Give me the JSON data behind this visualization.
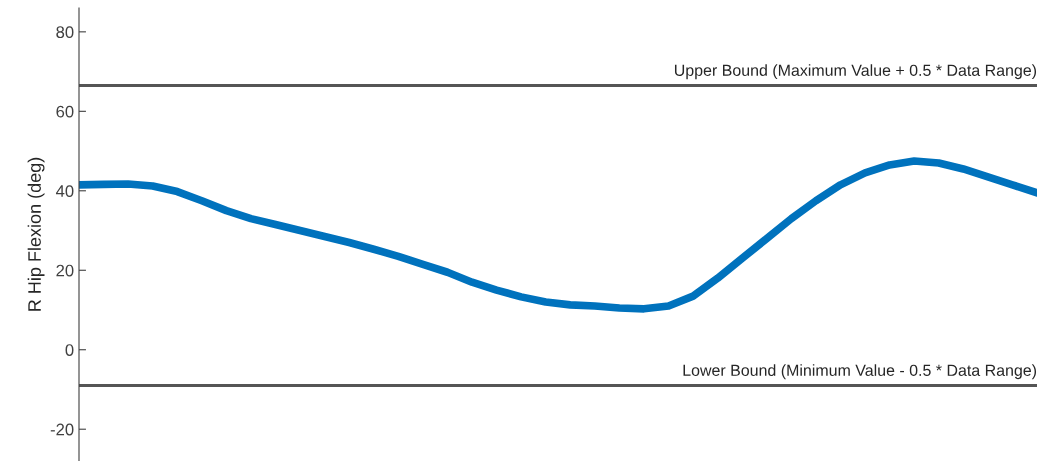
{
  "chart_data": {
    "type": "line",
    "ylabel": "R Hip Flexion (deg)",
    "categories": [
      null,
      null,
      null,
      null,
      null,
      null,
      null,
      null,
      null,
      null,
      null,
      null,
      null,
      null,
      null,
      null,
      null,
      null,
      null,
      null,
      null,
      null,
      null,
      null,
      null,
      null,
      null,
      null,
      null,
      null,
      null,
      null,
      null,
      null,
      null,
      null,
      null,
      null,
      null,
      null
    ],
    "series": [
      {
        "color": "#0072bd",
        "values": [
          41.5,
          41.6,
          41.7,
          41.2,
          39.8,
          37.5,
          35,
          33,
          31.5,
          30,
          28.5,
          27,
          25.3,
          23.5,
          21.5,
          19.5,
          17,
          15,
          13.3,
          12,
          11.3,
          11,
          10.5,
          10.3,
          11,
          13.5,
          18,
          23,
          28,
          33,
          37.5,
          41.5,
          44.5,
          46.5,
          47.5,
          47,
          45.5,
          43.5,
          41.5,
          39.5
        ]
      }
    ],
    "ylim": [
      -28,
      86
    ],
    "yticks": [
      -20,
      0,
      20,
      40,
      60,
      80
    ],
    "tick_labels": "y",
    "grid": false,
    "legend": false,
    "marker": "none",
    "line_style": "solid",
    "ref_lines": [
      {
        "axis": "y",
        "value": 66.5,
        "label": "Upper Bound (Maximum Value + 0.5 * Data Range)",
        "color": "#555555"
      },
      {
        "axis": "y",
        "value": -9,
        "label": "Lower Bound (Minimum Value - 0.5 * Data Range)",
        "color": "#555555"
      }
    ]
  }
}
